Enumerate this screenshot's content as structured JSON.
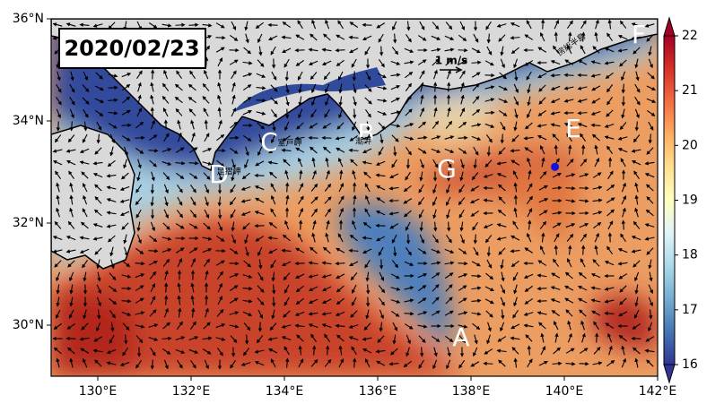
{
  "map": {
    "type": "ocean-current-map",
    "title": "2020/02/23",
    "xlim": [
      129,
      142
    ],
    "ylim": [
      29,
      36
    ],
    "xticks": [
      {
        "value": 130,
        "label": "130°E"
      },
      {
        "value": 132,
        "label": "132°E"
      },
      {
        "value": 134,
        "label": "134°E"
      },
      {
        "value": 136,
        "label": "136°E"
      },
      {
        "value": 138,
        "label": "138°E"
      },
      {
        "value": 140,
        "label": "140°E"
      },
      {
        "value": 142,
        "label": "142°E"
      }
    ],
    "yticks": [
      {
        "value": 30,
        "label": "30°N"
      },
      {
        "value": 32,
        "label": "32°N"
      },
      {
        "value": 34,
        "label": "34°N"
      },
      {
        "value": 36,
        "label": "36°N"
      }
    ],
    "colorbar": {
      "lim": [
        16,
        22
      ],
      "ticks": [
        16,
        17,
        18,
        19,
        20,
        21,
        22
      ],
      "colormap": [
        "#313695",
        "#4575b4",
        "#74add1",
        "#abd9e9",
        "#e0f3f8",
        "#ffffbf",
        "#fee090",
        "#fdae61",
        "#f46d43",
        "#d73027",
        "#a50026"
      ]
    },
    "region_labels": [
      "A",
      "B",
      "C",
      "D",
      "E",
      "F",
      "G"
    ],
    "place_names": [
      "室戸岬",
      "潮岬",
      "足摺岬",
      "房総半島"
    ],
    "scale_label": "1 m/s",
    "marker": {
      "lon": 139.8,
      "lat": 33.1,
      "color": "#1010e0"
    }
  }
}
